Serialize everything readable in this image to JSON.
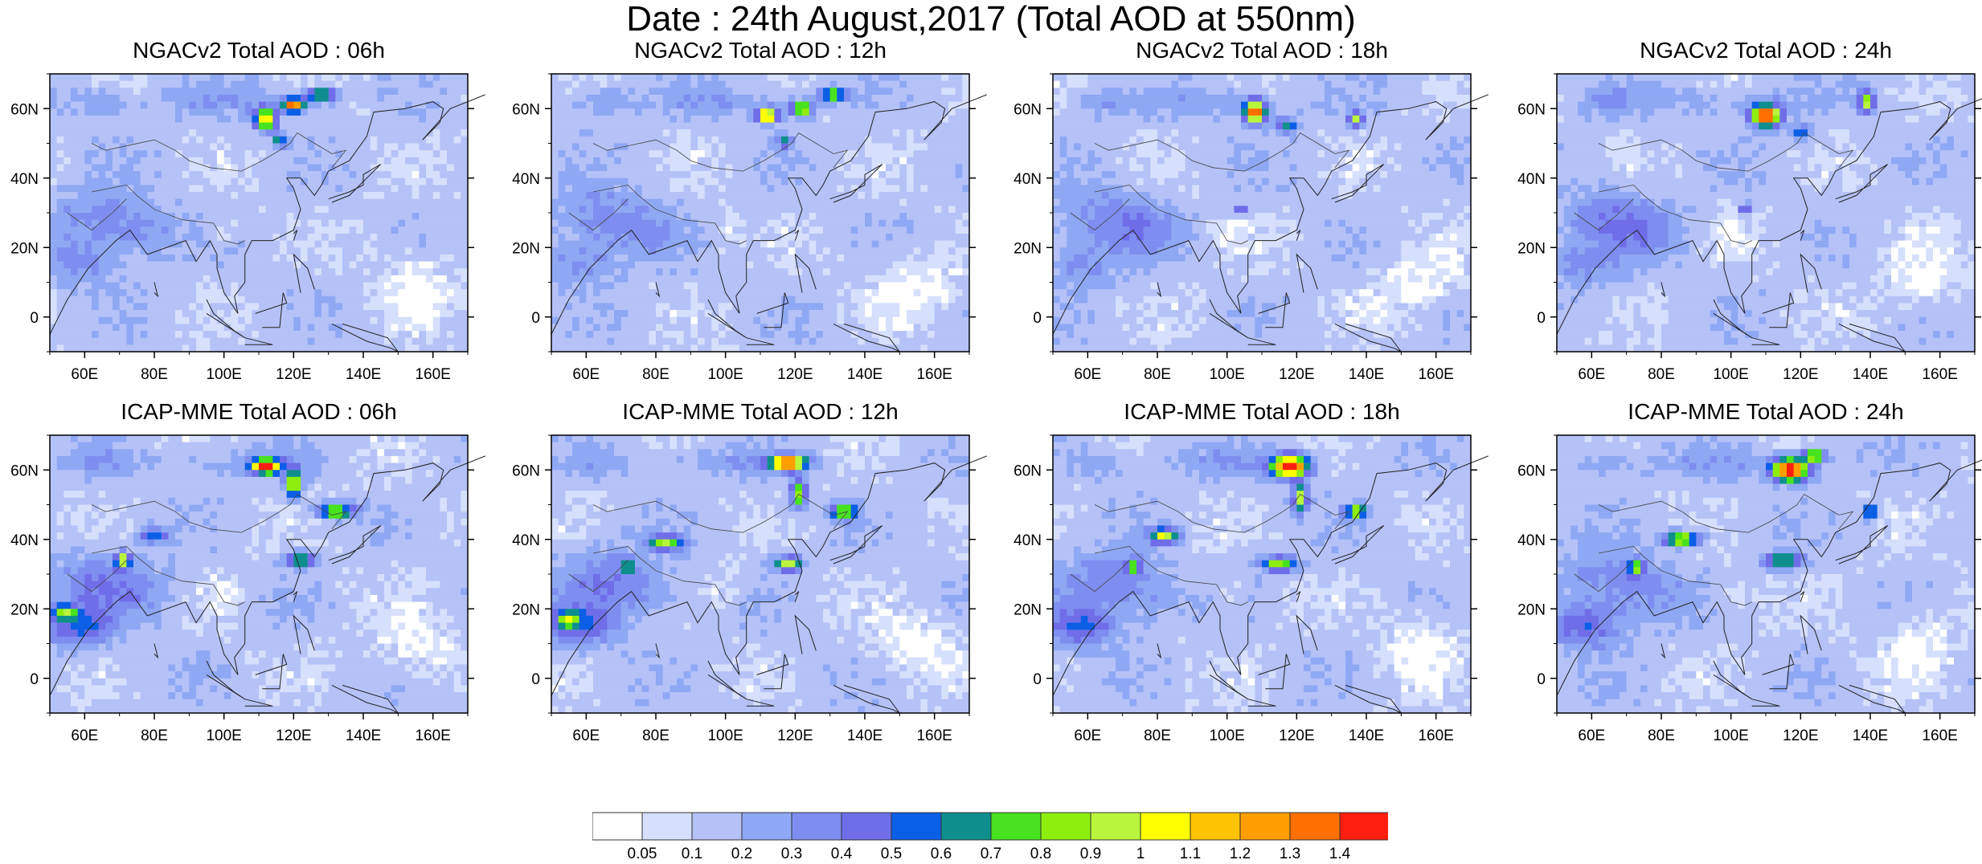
{
  "figure": {
    "title": "Date : 24th August,2017 (Total AOD at 550nm)"
  },
  "map_extent": {
    "lon": [
      50,
      170
    ],
    "lat": [
      -10,
      70
    ]
  },
  "axis": {
    "lat_ticks": [
      {
        "value": 60,
        "label": "60N"
      },
      {
        "value": 40,
        "label": "40N"
      },
      {
        "value": 20,
        "label": "20N"
      },
      {
        "value": 0,
        "label": "0"
      }
    ],
    "lon_ticks": [
      {
        "value": 60,
        "label": "60E"
      },
      {
        "value": 80,
        "label": "80E"
      },
      {
        "value": 100,
        "label": "100E"
      },
      {
        "value": 120,
        "label": "120E"
      },
      {
        "value": 140,
        "label": "140E"
      },
      {
        "value": 160,
        "label": "160E"
      }
    ]
  },
  "panels": [
    {
      "title": "NGACv2 Total AOD : 06h",
      "model": "NGACv2",
      "hour": "06h",
      "row": 0,
      "col": 0
    },
    {
      "title": "NGACv2 Total AOD : 12h",
      "model": "NGACv2",
      "hour": "12h",
      "row": 0,
      "col": 1
    },
    {
      "title": "NGACv2 Total AOD : 18h",
      "model": "NGACv2",
      "hour": "18h",
      "row": 0,
      "col": 2
    },
    {
      "title": "NGACv2 Total AOD : 24h",
      "model": "NGACv2",
      "hour": "24h",
      "row": 0,
      "col": 3
    },
    {
      "title": "ICAP-MME Total AOD : 06h",
      "model": "ICAP-MME",
      "hour": "06h",
      "row": 1,
      "col": 0
    },
    {
      "title": "ICAP-MME Total AOD : 12h",
      "model": "ICAP-MME",
      "hour": "12h",
      "row": 1,
      "col": 1
    },
    {
      "title": "ICAP-MME Total AOD : 18h",
      "model": "ICAP-MME",
      "hour": "18h",
      "row": 1,
      "col": 2
    },
    {
      "title": "ICAP-MME Total AOD : 24h",
      "model": "ICAP-MME",
      "hour": "24h",
      "row": 1,
      "col": 3
    }
  ],
  "colorbar": {
    "levels": [
      "0.05",
      "0.1",
      "0.2",
      "0.3",
      "0.4",
      "0.5",
      "0.6",
      "0.7",
      "0.8",
      "0.9",
      "1",
      "1.1",
      "1.2",
      "1.3",
      "1.4"
    ],
    "colors": [
      "#ffffff",
      "#d6dffc",
      "#b4c2f8",
      "#8fa8f4",
      "#7e8ef0",
      "#6f6ee8",
      "#0b5fe6",
      "#0f8e8e",
      "#48e21f",
      "#8dee0e",
      "#b9f53c",
      "#ffff00",
      "#ffc300",
      "#ff9e00",
      "#ff7000",
      "#ff1e10"
    ]
  }
}
